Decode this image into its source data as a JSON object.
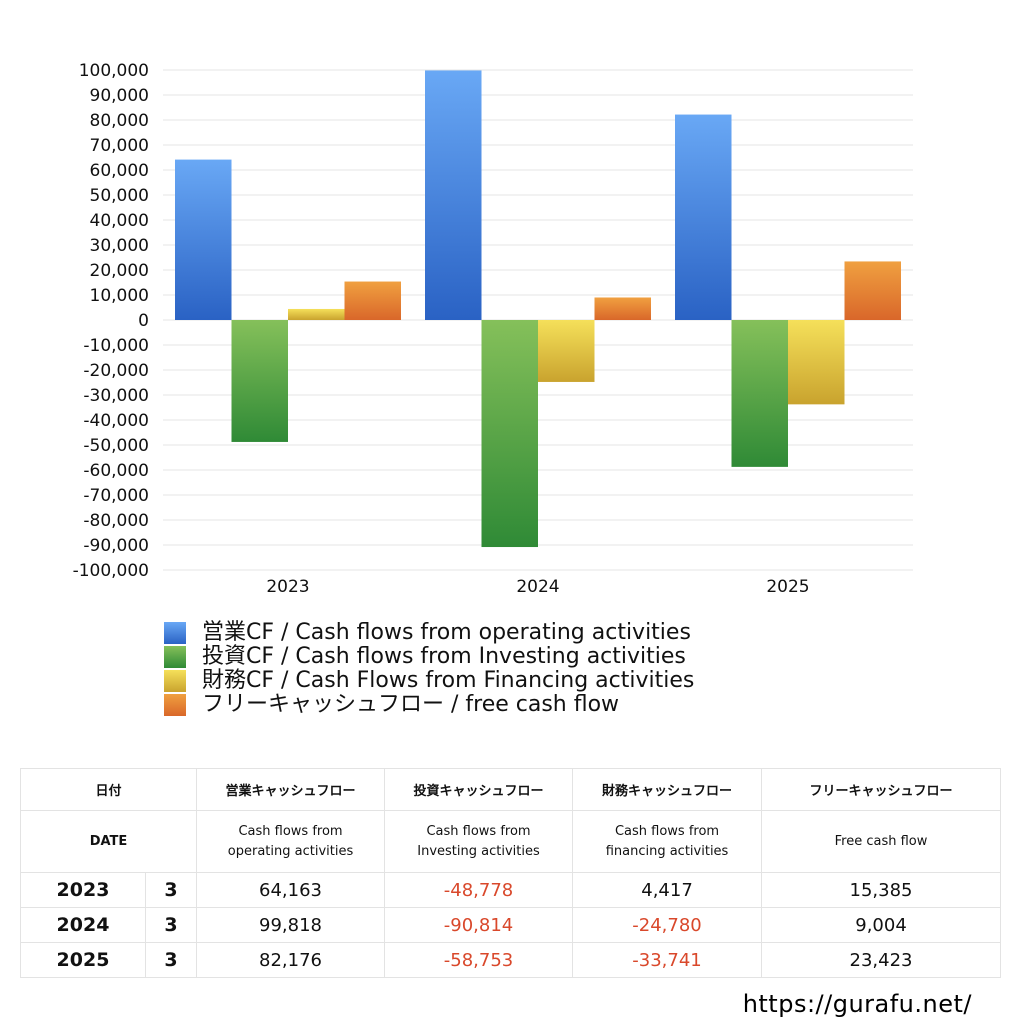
{
  "chart_data": {
    "type": "bar",
    "categories": [
      "2023",
      "2024",
      "2025"
    ],
    "series": [
      {
        "name": "営業CF / Cash flows from operating activities",
        "values": [
          64163,
          99818,
          82176
        ],
        "color_top": "#69a8f5",
        "color_bottom": "#2a62c4"
      },
      {
        "name": "投資CF / Cash flows from Investing activities",
        "values": [
          -48778,
          -90814,
          -58753
        ],
        "color_top": "#85c05a",
        "color_bottom": "#2f8a36"
      },
      {
        "name": "財務CF / Cash Flows from Financing activities",
        "values": [
          4417,
          -24780,
          -33741
        ],
        "color_top": "#f5e05a",
        "color_bottom": "#c9a32e"
      },
      {
        "name": "フリーキャッシュフロー / free cash flow",
        "values": [
          15385,
          9004,
          23423
        ],
        "color_top": "#f0a040",
        "color_bottom": "#d9672a"
      }
    ],
    "ylim": [
      -100000,
      100000
    ],
    "ytick_step": 10000,
    "yticks": [
      "100,000",
      "90,000",
      "80,000",
      "70,000",
      "60,000",
      "50,000",
      "40,000",
      "30,000",
      "20,000",
      "10,000",
      "0",
      "-10,000",
      "-20,000",
      "-30,000",
      "-40,000",
      "-50,000",
      "-60,000",
      "-70,000",
      "-80,000",
      "-90,000",
      "-100,000"
    ],
    "grid": true,
    "legend_position": "bottom"
  },
  "table": {
    "header_jp": [
      "日付",
      "営業キャッシュフロー",
      "投資キャッシュフロー",
      "財務キャッシュフロー",
      "フリーキャッシュフロー"
    ],
    "header_en": {
      "date": "DATE",
      "operating": [
        "Cash flows from",
        "operating activities"
      ],
      "investing": [
        "Cash flows from",
        "Investing activities"
      ],
      "financing": [
        "Cash flows from",
        "financing activities"
      ],
      "fcf": "Free cash flow"
    },
    "rows": [
      {
        "year": "2023",
        "month": "3",
        "operating": "64,163",
        "investing": "-48,778",
        "financing": "4,417",
        "fcf": "15,385"
      },
      {
        "year": "2024",
        "month": "3",
        "operating": "99,818",
        "investing": "-90,814",
        "financing": "-24,780",
        "fcf": "9,004"
      },
      {
        "year": "2025",
        "month": "3",
        "operating": "82,176",
        "investing": "-58,753",
        "financing": "-33,741",
        "fcf": "23,423"
      }
    ],
    "negative_color": "#d9482b"
  },
  "footer": {
    "url": "https://gurafu.net/"
  }
}
